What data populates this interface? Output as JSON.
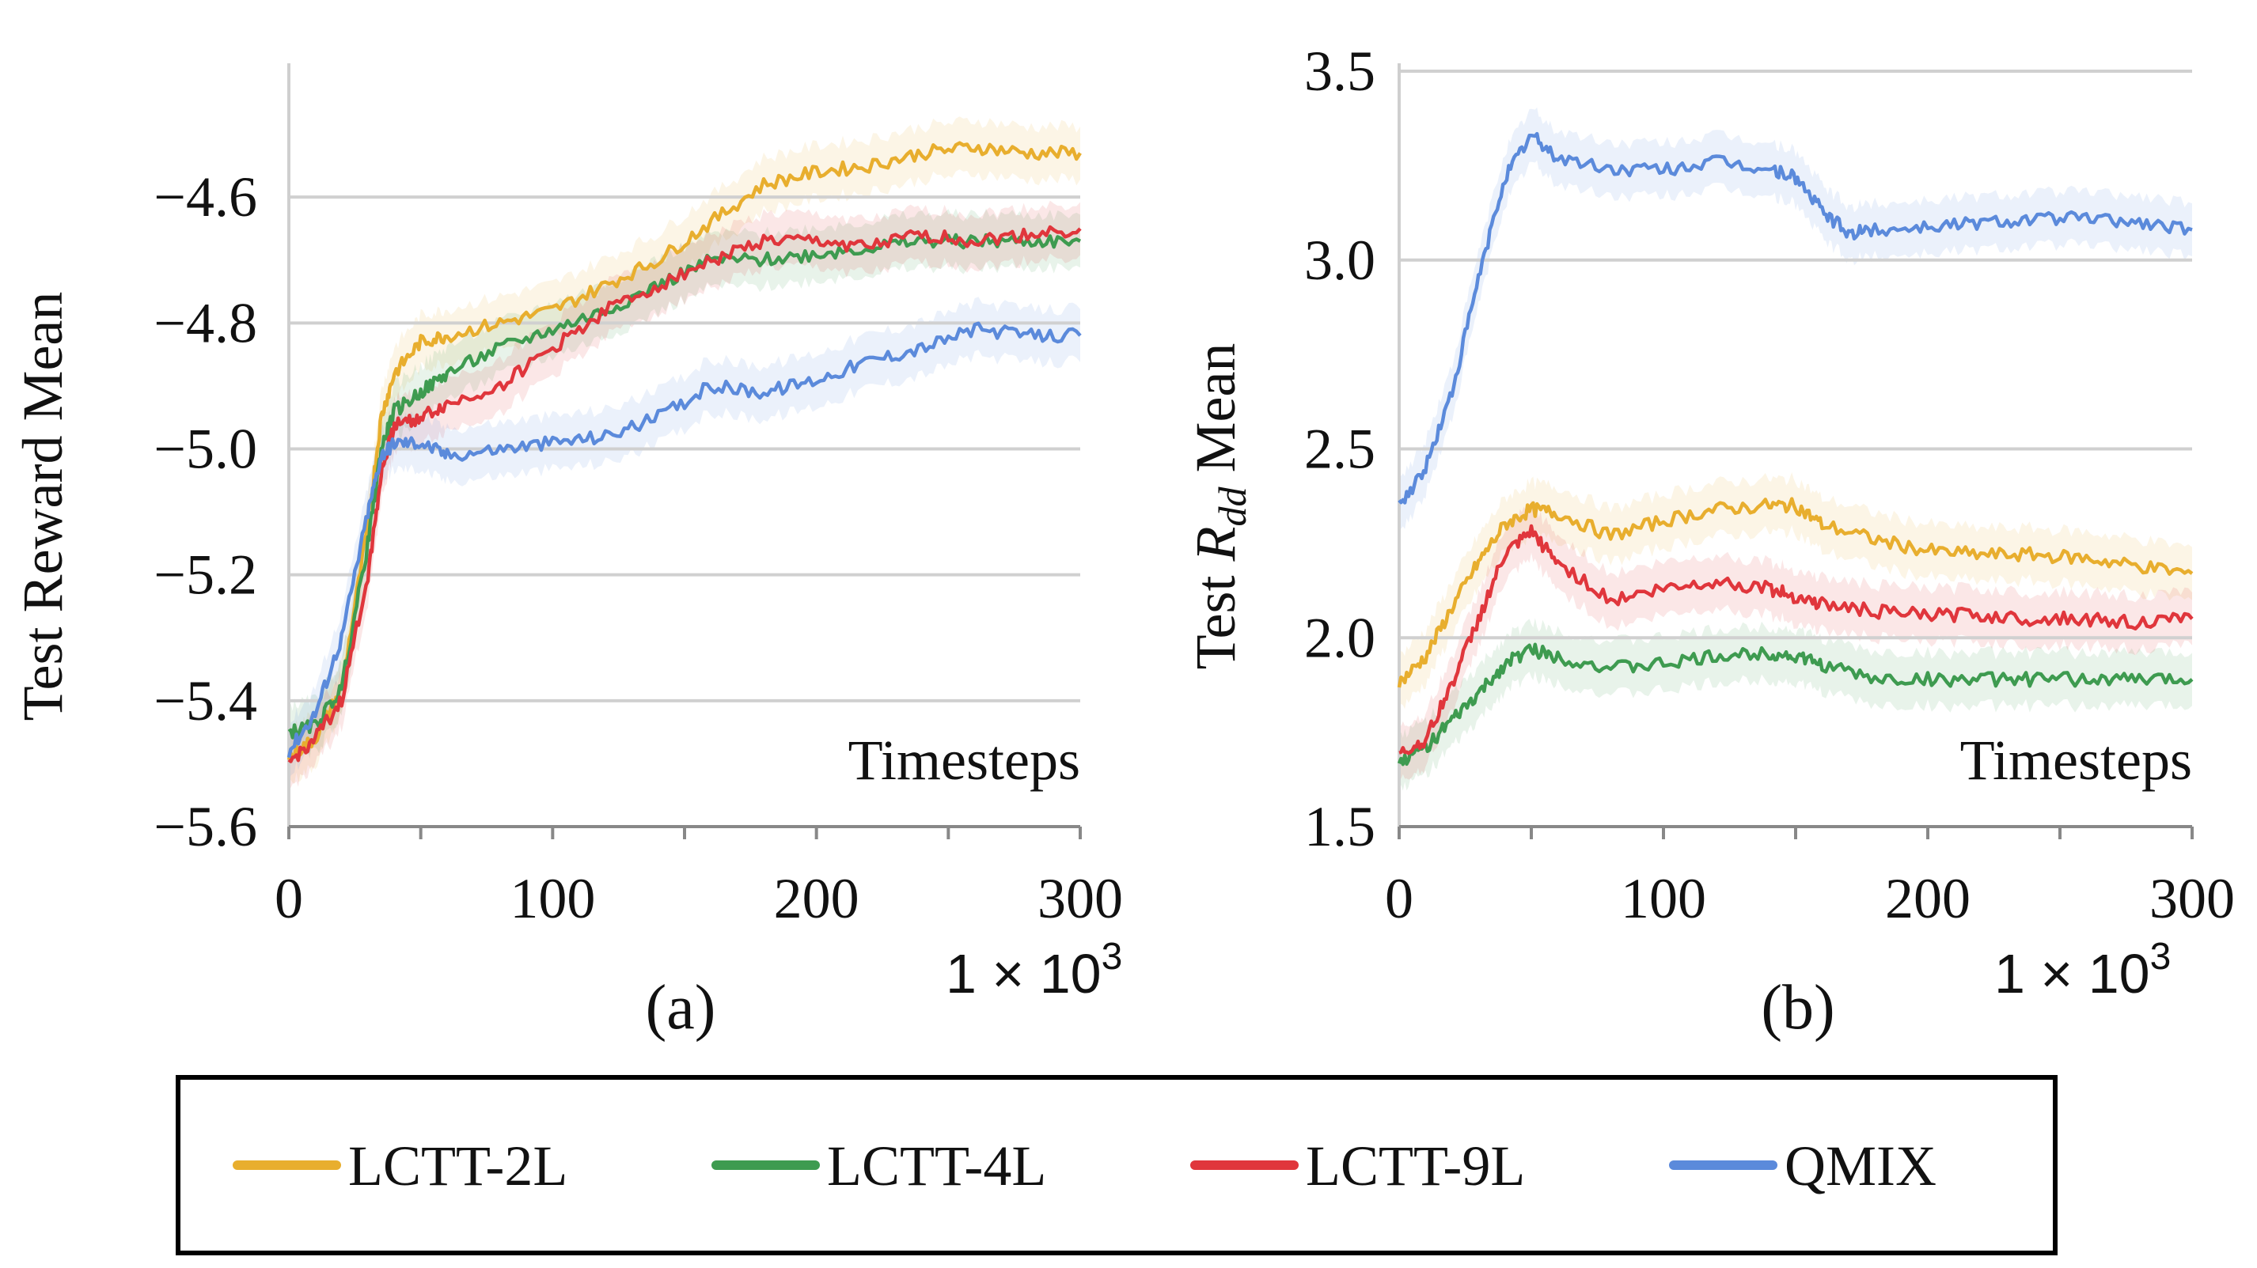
{
  "chart_data": [
    {
      "id": "a",
      "type": "line",
      "caption": "(a)",
      "ylabel": "Test Reward Mean",
      "xlabel": "Timesteps",
      "x_multiplier": "1 × 10",
      "x_multiplier_exp": "3",
      "xlim": [
        0,
        300
      ],
      "ylim": [
        -5.6,
        -4.4
      ],
      "xticks": [
        0,
        100,
        200,
        300
      ],
      "xtick_labels": [
        "0",
        "100",
        "200",
        "300"
      ],
      "yticks": [
        -4.6,
        -4.8,
        -5.0,
        -5.2,
        -5.4,
        -5.6
      ],
      "ytick_labels": [
        "−4.6",
        "−4.8",
        "−5.0",
        "−5.2",
        "−5.4",
        "−5.6"
      ],
      "grid": true,
      "series": [
        {
          "name": "LCTT-2L",
          "color": "#E8AE2E",
          "x": [
            0,
            10,
            20,
            30,
            35,
            40,
            50,
            60,
            80,
            100,
            120,
            140,
            160,
            180,
            200,
            220,
            240,
            260,
            280,
            300
          ],
          "values": [
            -5.49,
            -5.46,
            -5.38,
            -5.12,
            -4.95,
            -4.88,
            -4.83,
            -4.82,
            -4.8,
            -4.78,
            -4.74,
            -4.7,
            -4.64,
            -4.58,
            -4.56,
            -4.55,
            -4.53,
            -4.52,
            -4.53,
            -4.53
          ]
        },
        {
          "name": "LCTT-4L",
          "color": "#3E9B50",
          "x": [
            0,
            10,
            20,
            30,
            35,
            40,
            50,
            60,
            80,
            100,
            120,
            140,
            160,
            180,
            200,
            220,
            240,
            260,
            280,
            300
          ],
          "values": [
            -5.45,
            -5.44,
            -5.38,
            -5.15,
            -5.0,
            -4.94,
            -4.91,
            -4.88,
            -4.84,
            -4.81,
            -4.78,
            -4.74,
            -4.7,
            -4.7,
            -4.69,
            -4.68,
            -4.67,
            -4.67,
            -4.67,
            -4.67
          ]
        },
        {
          "name": "LCTT-9L",
          "color": "#E0363C",
          "x": [
            0,
            10,
            20,
            30,
            35,
            40,
            50,
            60,
            80,
            100,
            120,
            140,
            160,
            180,
            200,
            220,
            240,
            260,
            280,
            300
          ],
          "values": [
            -5.5,
            -5.46,
            -5.4,
            -5.2,
            -5.04,
            -4.96,
            -4.95,
            -4.93,
            -4.9,
            -4.84,
            -4.78,
            -4.74,
            -4.7,
            -4.67,
            -4.67,
            -4.68,
            -4.66,
            -4.67,
            -4.66,
            -4.65
          ]
        },
        {
          "name": "QMIX",
          "color": "#5B8ADB",
          "x": [
            0,
            10,
            20,
            30,
            35,
            40,
            50,
            60,
            80,
            100,
            120,
            140,
            160,
            180,
            200,
            220,
            240,
            260,
            280,
            300
          ],
          "values": [
            -5.48,
            -5.42,
            -5.3,
            -5.1,
            -5.01,
            -4.99,
            -4.99,
            -5.01,
            -5.0,
            -4.99,
            -4.98,
            -4.95,
            -4.9,
            -4.91,
            -4.89,
            -4.86,
            -4.84,
            -4.81,
            -4.82,
            -4.82
          ]
        }
      ]
    },
    {
      "id": "b",
      "type": "line",
      "caption": "(b)",
      "ylabel_prefix": "Test ",
      "ylabel_symbol": "R",
      "ylabel_subscript": "dd",
      "ylabel_suffix": " Mean",
      "xlabel": "Timesteps",
      "x_multiplier": "1 × 10",
      "x_multiplier_exp": "3",
      "xlim": [
        0,
        300
      ],
      "ylim": [
        1.5,
        3.5
      ],
      "xticks": [
        0,
        100,
        200,
        300
      ],
      "xtick_labels": [
        "0",
        "100",
        "200",
        "300"
      ],
      "yticks": [
        3.5,
        3.0,
        2.5,
        2.0,
        1.5
      ],
      "ytick_labels": [
        "3.5",
        "3.0",
        "2.5",
        "2.0",
        "1.5"
      ],
      "grid": true,
      "series": [
        {
          "name": "LCTT-2L",
          "color": "#E8AE2E",
          "x": [
            0,
            10,
            20,
            30,
            40,
            50,
            60,
            80,
            100,
            120,
            140,
            150,
            160,
            180,
            200,
            220,
            240,
            260,
            280,
            300
          ],
          "values": [
            1.88,
            1.95,
            2.08,
            2.2,
            2.3,
            2.34,
            2.33,
            2.27,
            2.31,
            2.34,
            2.35,
            2.35,
            2.3,
            2.26,
            2.23,
            2.22,
            2.22,
            2.21,
            2.19,
            2.17
          ]
        },
        {
          "name": "LCTT-4L",
          "color": "#3E9B50",
          "x": [
            0,
            10,
            20,
            30,
            40,
            50,
            60,
            80,
            100,
            120,
            140,
            150,
            160,
            180,
            200,
            220,
            240,
            260,
            280,
            300
          ],
          "values": [
            1.67,
            1.71,
            1.78,
            1.85,
            1.93,
            1.97,
            1.95,
            1.92,
            1.93,
            1.95,
            1.96,
            1.95,
            1.93,
            1.89,
            1.89,
            1.89,
            1.89,
            1.89,
            1.89,
            1.89
          ]
        },
        {
          "name": "LCTT-9L",
          "color": "#E0363C",
          "x": [
            0,
            10,
            20,
            30,
            40,
            50,
            60,
            80,
            100,
            120,
            140,
            150,
            160,
            180,
            200,
            220,
            240,
            260,
            280,
            300
          ],
          "values": [
            1.69,
            1.73,
            1.88,
            2.05,
            2.22,
            2.28,
            2.2,
            2.1,
            2.13,
            2.15,
            2.13,
            2.11,
            2.09,
            2.07,
            2.06,
            2.06,
            2.05,
            2.05,
            2.04,
            2.05
          ]
        },
        {
          "name": "QMIX",
          "color": "#5B8ADB",
          "x": [
            0,
            10,
            20,
            30,
            40,
            50,
            60,
            80,
            100,
            120,
            140,
            150,
            160,
            170,
            180,
            200,
            220,
            240,
            260,
            280,
            300
          ],
          "values": [
            2.35,
            2.45,
            2.65,
            2.95,
            3.22,
            3.33,
            3.27,
            3.24,
            3.24,
            3.26,
            3.24,
            3.22,
            3.13,
            3.07,
            3.08,
            3.09,
            3.1,
            3.11,
            3.11,
            3.1,
            3.08
          ]
        }
      ]
    }
  ],
  "legend": {
    "placement": "bottom",
    "items": [
      {
        "label": "LCTT-2L",
        "color": "#E8AE2E"
      },
      {
        "label": "LCTT-4L",
        "color": "#3E9B50"
      },
      {
        "label": "LCTT-9L",
        "color": "#E0363C"
      },
      {
        "label": "QMIX",
        "color": "#5B8ADB"
      }
    ]
  }
}
